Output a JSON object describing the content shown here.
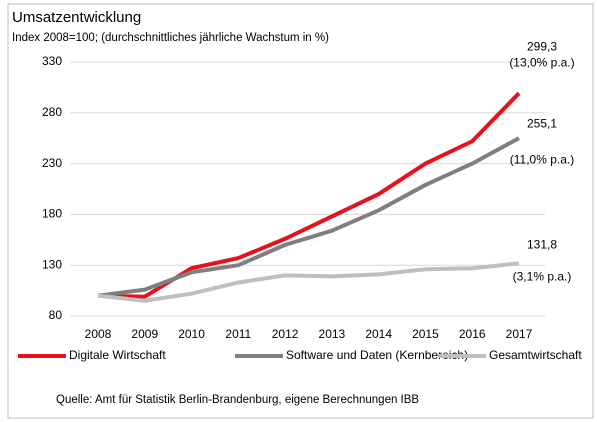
{
  "chart_data": {
    "type": "line",
    "title": "Umsatzentwicklung",
    "subtitle": "Index 2008=100; (durchschnittliches jährliche Wachstum in %)",
    "categories": [
      "2008",
      "2009",
      "2010",
      "2011",
      "2012",
      "2013",
      "2014",
      "2015",
      "2016",
      "2017"
    ],
    "series": [
      {
        "name": "Digitale Wirtschaft",
        "color": "#e8101a",
        "values": [
          100,
          99,
          127,
          137,
          156,
          178,
          200,
          230,
          252,
          299.3
        ],
        "value_labels": [
          null,
          null,
          null,
          null,
          null,
          null,
          null,
          null,
          null,
          "299,3"
        ],
        "annotation": "(13,0% p.a.)"
      },
      {
        "name": "Software und Daten (Kernbereich)",
        "color": "#7f7f7f",
        "values": [
          100,
          106,
          123,
          130,
          150,
          164,
          184,
          209,
          230,
          255.1
        ],
        "value_labels": [
          null,
          null,
          null,
          null,
          null,
          null,
          null,
          null,
          null,
          "255,1"
        ],
        "annotation": "(11,0% p.a.)"
      },
      {
        "name": "Gesamtwirtschaft",
        "color": "#bfbfbf",
        "values": [
          100,
          95,
          102,
          113,
          120,
          119,
          121,
          126,
          127,
          131.8
        ],
        "value_labels": [
          null,
          null,
          null,
          null,
          null,
          null,
          null,
          null,
          null,
          "131,8"
        ],
        "annotation": "(3,1% p.a.)"
      }
    ],
    "ylim": [
      80,
      330
    ],
    "yticks": [
      80,
      130,
      180,
      230,
      280,
      330
    ],
    "grid": true,
    "legend": "bottom",
    "source": "Quelle: Amt für Statistik Berlin-Brandenburg, eigene Berechnungen IBB"
  }
}
